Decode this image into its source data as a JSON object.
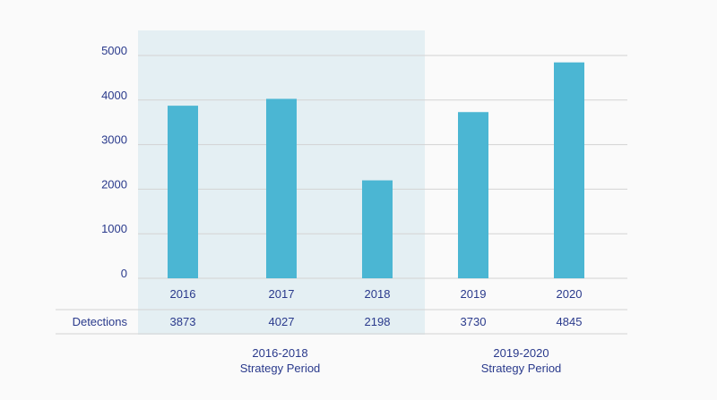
{
  "chart_data": {
    "type": "bar",
    "categories": [
      "2016",
      "2017",
      "2018",
      "2019",
      "2020"
    ],
    "series": [
      {
        "values": [
          3873,
          4027,
          2198,
          3730,
          4845
        ]
      }
    ],
    "ylim": [
      0,
      5000
    ],
    "yticks": [
      "0",
      "1000",
      "2000",
      "3000",
      "4000",
      "5000"
    ],
    "grid": true,
    "table": {
      "row_label": "Detections",
      "values": [
        "3873",
        "4027",
        "2198",
        "3730",
        "4845"
      ]
    },
    "periods": [
      {
        "line1": "2016-2018",
        "line2": "Strategy Period",
        "categories": [
          "2016",
          "2017",
          "2018"
        ],
        "highlighted": true
      },
      {
        "line1": "2019-2020",
        "line2": "Strategy Period",
        "categories": [
          "2019",
          "2020"
        ],
        "highlighted": false
      }
    ],
    "colors": {
      "bar": "#4bb6d3",
      "highlight": "#e4eff3",
      "text": "#2a3a8c",
      "grid": "#d3d3d3"
    }
  }
}
